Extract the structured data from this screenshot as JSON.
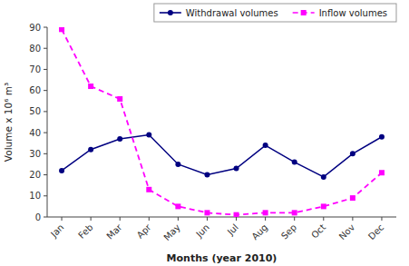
{
  "chart_data": {
    "type": "line",
    "categories": [
      "Jan",
      "Feb",
      "Mar",
      "Apr",
      "May",
      "Jun",
      "Jul",
      "Aug",
      "Sep",
      "Oct",
      "Nov",
      "Dec"
    ],
    "series": [
      {
        "name": "Withdrawal volumes",
        "color": "#000080",
        "marker": "circle",
        "line_style": "solid",
        "values": [
          22,
          32,
          37,
          39,
          25,
          20,
          23,
          34,
          26,
          19,
          30,
          38
        ]
      },
      {
        "name": "Inflow volumes",
        "color": "#FF00FF",
        "marker": "square",
        "line_style": "dashed",
        "values": [
          89,
          62,
          56,
          13,
          5,
          2,
          1,
          2,
          2,
          5,
          9,
          21
        ]
      }
    ],
    "xlabel": "Months (year 2010)",
    "ylabel": "Volume x 10⁶ m³",
    "ylim": [
      0,
      90
    ],
    "yticks": [
      0,
      10,
      20,
      30,
      40,
      50,
      60,
      70,
      80,
      90
    ],
    "grid": false,
    "legend": "upper right"
  }
}
